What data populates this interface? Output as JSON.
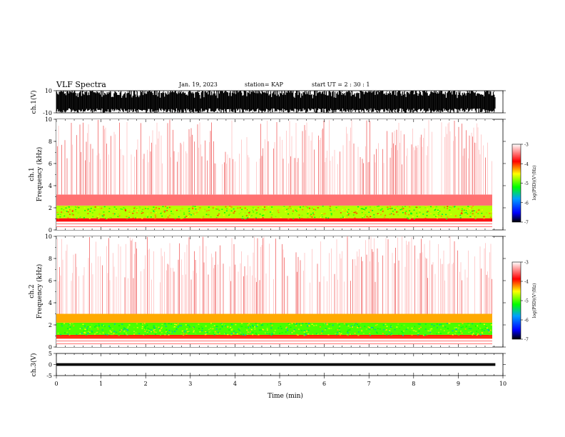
{
  "header": {
    "title": "VLF Spectra",
    "date": "Jan. 19, 2023",
    "station": "station= KAP",
    "start_ut": "start  UT =  2 : 30 : 1"
  },
  "colors": {
    "background": "#ffffff",
    "axes": "#000000",
    "spectrogram_base": "#ff0000"
  },
  "chart_data": [
    {
      "type": "line",
      "panel": "ch1-waveform",
      "ylabel": "ch.1(V)",
      "ylim": [
        -10,
        10
      ],
      "yticks": [
        10,
        -10
      ],
      "xlim": [
        0,
        10
      ],
      "data_end_min": 9.83,
      "envelope_max_v": 10,
      "envelope_min_v": -10,
      "description_values": {
        "typical_low_v": -6,
        "typical_high_v": 10
      }
    },
    {
      "type": "heatmap",
      "panel": "ch1-spectrogram",
      "ylabel_channel": "ch.1",
      "ylabel": "Frequency (kHz)",
      "ylim": [
        0,
        10
      ],
      "yticks": [
        0,
        2,
        4,
        6,
        8,
        10
      ],
      "xlim": [
        0,
        10
      ],
      "data_end_min": 9.83,
      "bands": [
        {
          "from_khz": 0.75,
          "to_khz": 1.05,
          "log_psd": -3.9
        },
        {
          "from_khz": 1.05,
          "to_khz": 2.2,
          "log_psd": -4.7
        },
        {
          "from_khz": 2.2,
          "to_khz": 3.2,
          "log_psd": -3.5
        },
        {
          "from_khz": 3.2,
          "to_khz": 10.0,
          "log_psd": -3.0
        }
      ],
      "colorbar": {
        "label": "log(PSD)(V²/Hz)",
        "range": [
          -7,
          -3
        ],
        "ticks": [
          -3,
          -4,
          -5,
          -6,
          -7
        ]
      }
    },
    {
      "type": "heatmap",
      "panel": "ch2-spectrogram",
      "ylabel_channel": "ch.2",
      "ylabel": "Frequency (kHz)",
      "ylim": [
        0,
        10
      ],
      "yticks": [
        0,
        2,
        4,
        6,
        8,
        10
      ],
      "xlim": [
        0,
        10
      ],
      "data_end_min": 9.83,
      "bands": [
        {
          "from_khz": 0.75,
          "to_khz": 1.1,
          "log_psd": -4.0
        },
        {
          "from_khz": 1.1,
          "to_khz": 2.2,
          "log_psd": -5.0
        },
        {
          "from_khz": 2.2,
          "to_khz": 3.0,
          "log_psd": -4.3
        },
        {
          "from_khz": 3.0,
          "to_khz": 10.0,
          "log_psd": -3.0
        }
      ],
      "colorbar": {
        "label": "log(PSD)(V²/Hz)",
        "range": [
          -7,
          -3
        ],
        "ticks": [
          -3,
          -4,
          -5,
          -6,
          -7
        ]
      }
    },
    {
      "type": "line",
      "panel": "ch3-waveform",
      "ylabel": "ch.3(V)",
      "ylim": [
        -5,
        5
      ],
      "yticks": [
        5,
        0,
        -5
      ],
      "xlim": [
        0,
        10
      ],
      "data_end_min": 9.83,
      "level_v": 0,
      "amplitude_v": 0.6
    }
  ],
  "xaxis": {
    "label": "Time (min)",
    "ticks": [
      0,
      1,
      2,
      3,
      4,
      5,
      6,
      7,
      8,
      9,
      10
    ]
  }
}
